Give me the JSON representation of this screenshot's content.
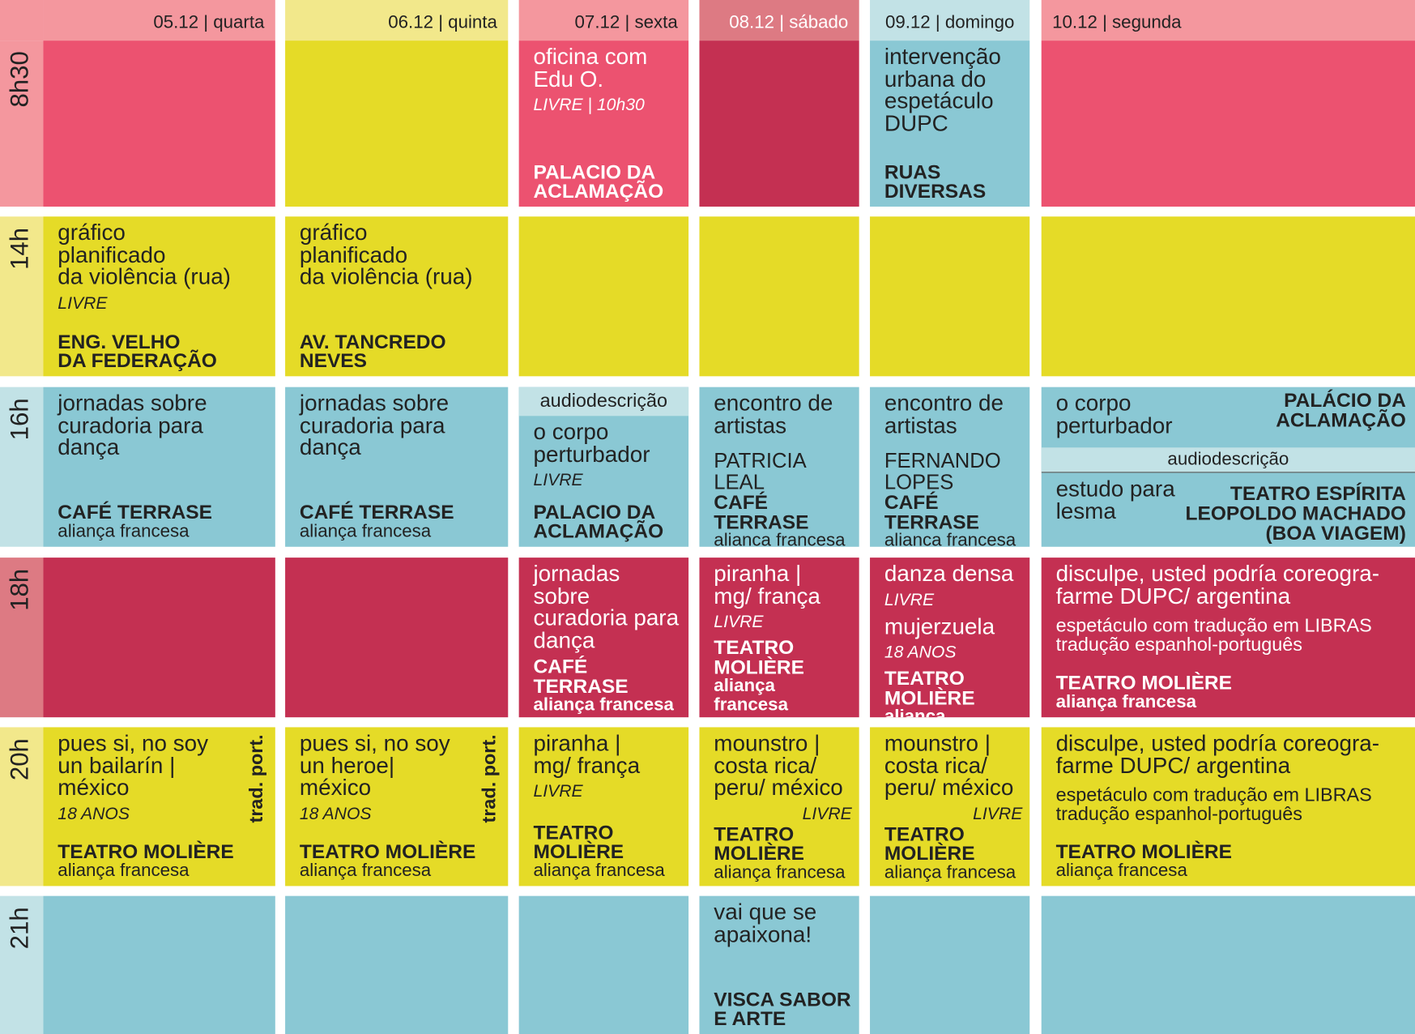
{
  "header": {
    "days": [
      "05.12 | quarta",
      "06.12 | quinta",
      "07.12 | sexta",
      "08.12 | sábado",
      "09.12 | domingo",
      "10.12 | segunda"
    ]
  },
  "times": [
    "8h30",
    "14h",
    "16h",
    "18h",
    "20h",
    "21h"
  ],
  "rows": [
    [
      null,
      null,
      {
        "title": "oficina com\nEdu O.",
        "tag": "LIVRE | 10h30",
        "venue": "PALACIO DA\nACLAMAÇÃO"
      },
      null,
      {
        "title": "intervenção\nurbana do\nespetáculo\nDUPC",
        "venue": "RUAS\nDIVERSAS"
      },
      null
    ],
    [
      {
        "title": "gráfico\nplanificado\nda violência (rua)",
        "tag": "LIVRE",
        "venue": "ENG. VELHO\nDA FEDERAÇÃO"
      },
      {
        "title": "gráfico\nplanificado\nda violência (rua)",
        "venue": "AV. TANCREDO\nNEVES"
      },
      null,
      null,
      null,
      null
    ],
    [
      {
        "title": "jornadas sobre\ncuradoria  para\ndança",
        "venue": "CAFÉ TERRASE",
        "place": "aliança francesa"
      },
      {
        "title": "jornadas sobre\ncuradoria  para\ndança",
        "venue": "CAFÉ TERRASE",
        "place": "aliança francesa"
      },
      {
        "note": "audiodescrição",
        "title": "o corpo\nperturbador",
        "tag": "LIVRE",
        "venue": "PALACIO DA\nACLAMAÇÃO"
      },
      {
        "title": "encontro de\nartistas",
        "guest": "PATRICIA LEAL",
        "venue": "CAFÉ TERRASE",
        "place": "alianca francesa"
      },
      {
        "title": "encontro de\nartistas",
        "guest": "FERNANDO\nLOPES",
        "venue": "CAFÉ TERRASE",
        "place": "alianca francesa"
      },
      {
        "title": "o corpo\nperturbador",
        "venue_right": "PALÁCIO DA\nACLAMAÇÃO",
        "note_bar": "audiodescrição",
        "title2": "estudo para\nlesma",
        "venue2_right": "TEATRO ESPÍRITA\nLEOPOLDO MACHADO\n(BOA VIAGEM)"
      }
    ],
    [
      null,
      null,
      {
        "title": "jornadas sobre\ncuradoria  para\ndança",
        "venue": "CAFÉ TERRASE",
        "place": "aliança francesa"
      },
      {
        "title": "piranha |\nmg/ frança",
        "tag": "LIVRE",
        "venue": "TEATRO\nMOLIÈRE",
        "place": "aliança francesa"
      },
      {
        "title": "danza densa",
        "tag": "LIVRE",
        "title2": "mujerzuela",
        "tag2": "18 ANOS",
        "venue": "TEATRO\nMOLIÈRE",
        "place": "aliança francesa"
      },
      {
        "title": "disculpe, usted podría coreogra-\nfarme DUPC/ argentina",
        "info": "espetáculo com tradução em LIBRAS\ntradução espanhol-português",
        "venue": "TEATRO MOLIÈRE",
        "place": "aliança francesa"
      }
    ],
    [
      {
        "title": "pues si, no soy\nun bailarín |\nméxico",
        "side": "trad. port.",
        "tag": "18 ANOS",
        "venue": "TEATRO MOLIÈRE",
        "place": "aliança francesa"
      },
      {
        "title": "pues si, no soy\nun heroe|\nméxico",
        "side": "trad. port.",
        "tag": "18 ANOS",
        "venue": "TEATRO MOLIÈRE",
        "place": "aliança francesa"
      },
      {
        "title": "piranha |\nmg/ frança",
        "tag": "LIVRE",
        "venue": "TEATRO\nMOLIÈRE",
        "place": "aliança francesa"
      },
      {
        "title": "mounstro |\ncosta rica/\nperu/ méxico",
        "tag_right": "LIVRE",
        "venue": "TEATRO\nMOLIÈRE",
        "place": "aliança francesa"
      },
      {
        "title": "mounstro |\ncosta rica/\nperu/ méxico",
        "tag_right": "LIVRE",
        "venue": "TEATRO\nMOLIÈRE",
        "place": "aliança francesa"
      },
      {
        "title": "disculpe, usted podría coreogra-\nfarme DUPC/ argentina",
        "info": "espetáculo com tradução em LIBRAS\ntradução espanhol-português",
        "venue": "TEATRO MOLIÈRE",
        "place": "aliança francesa"
      }
    ],
    [
      null,
      null,
      null,
      {
        "title": "vai que se\napaixona!",
        "venue": "VISCA SABOR\nE ARTE"
      },
      null,
      null
    ]
  ]
}
